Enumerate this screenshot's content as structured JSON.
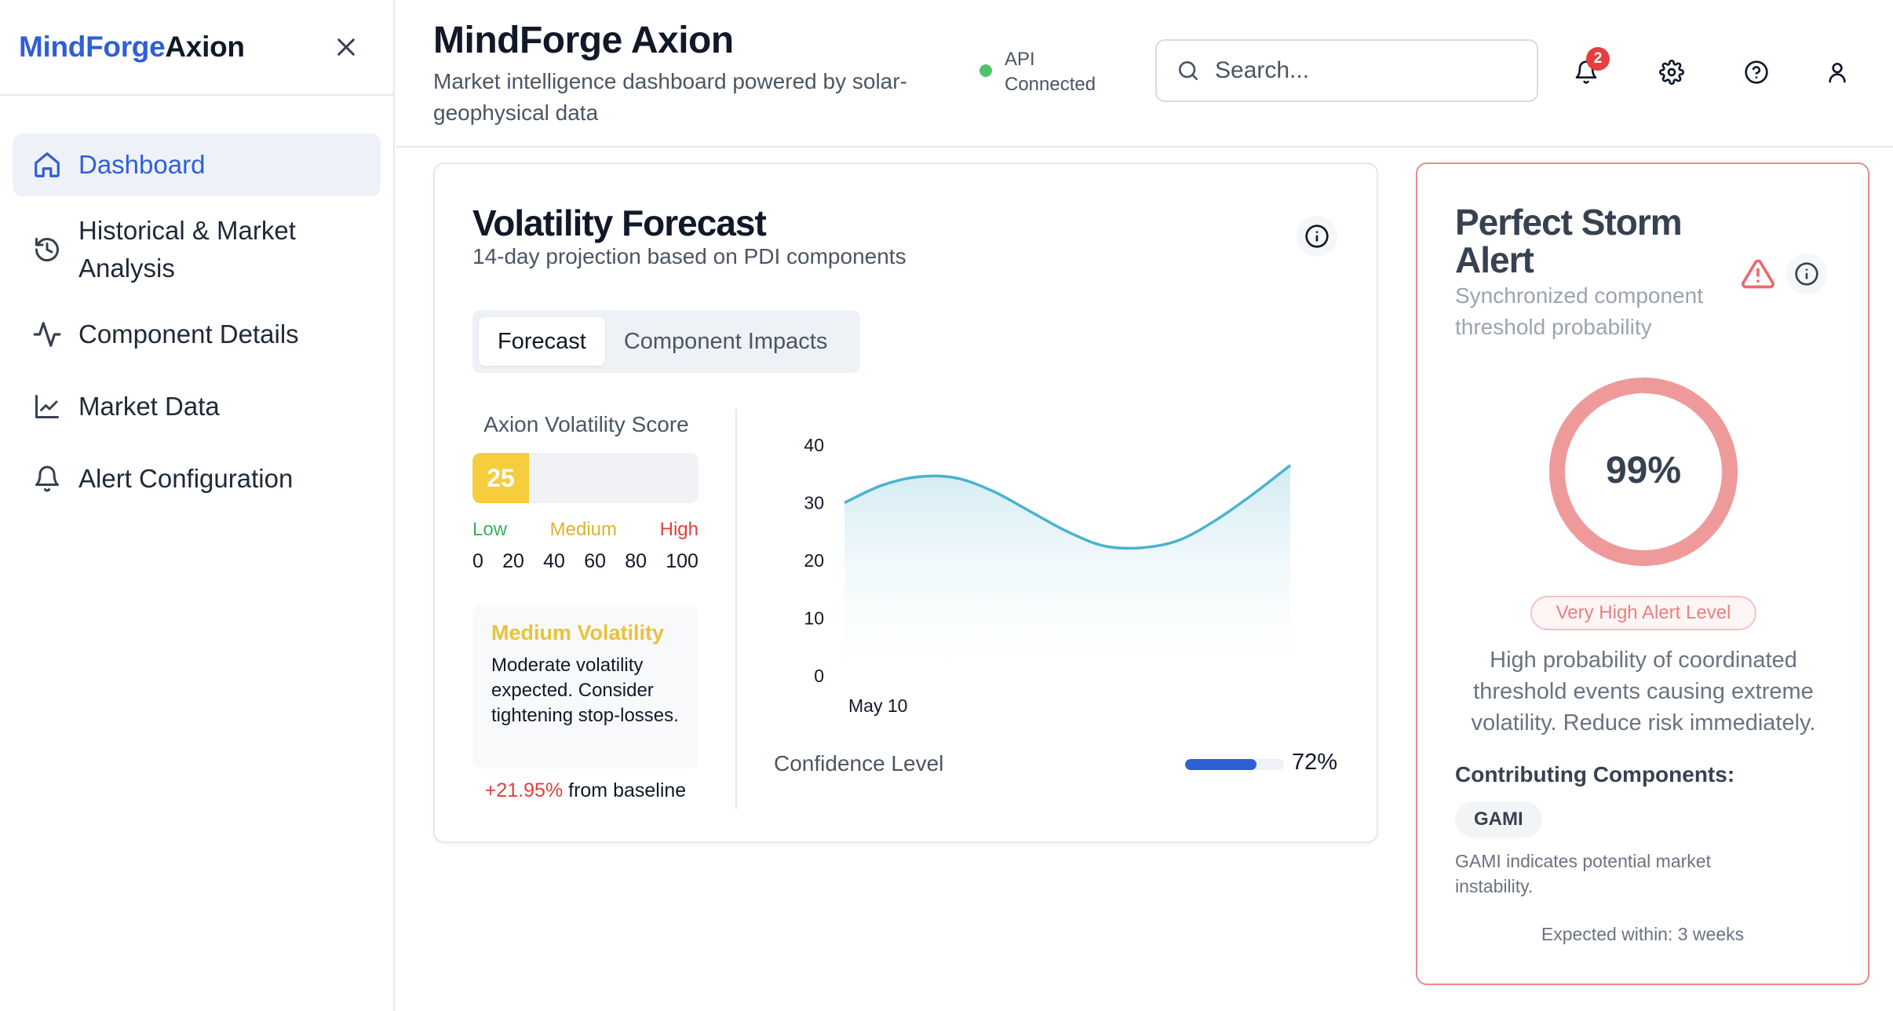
{
  "sidebar": {
    "brand_part1": "MindForge",
    "brand_part2": "Axion",
    "items": [
      {
        "label": "Dashboard",
        "icon": "home-icon",
        "active": true
      },
      {
        "label": "Historical & Market Analysis",
        "icon": "history-icon"
      },
      {
        "label": "Component Details",
        "icon": "activity-icon"
      },
      {
        "label": "Market Data",
        "icon": "line-chart-icon"
      },
      {
        "label": "Alert Configuration",
        "icon": "bell-icon"
      }
    ]
  },
  "header": {
    "title": "MindForge Axion",
    "subtitle": "Market intelligence dashboard powered by solar-geophysical data",
    "api_status": "API Connected",
    "search_placeholder": "Search...",
    "notification_count": "2"
  },
  "forecast": {
    "title": "Volatility Forecast",
    "subtitle": "14-day projection based on PDI components",
    "tabs": [
      "Forecast",
      "Component Impacts"
    ],
    "score_label": "Axion Volatility Score",
    "score_value": "25",
    "score_fraction": 0.25,
    "levels": {
      "low": "Low",
      "medium": "Medium",
      "high": "High"
    },
    "ticks": [
      "0",
      "20",
      "40",
      "60",
      "80",
      "100"
    ],
    "status_title": "Medium Volatility",
    "status_text": "Moderate volatility expected. Consider tightening stop-losses.",
    "baseline_change": "+21.95%",
    "baseline_text": " from baseline",
    "confidence_label": "Confidence Level",
    "confidence_value": "72%",
    "confidence_fraction": 0.72
  },
  "chart_data": {
    "type": "area",
    "x_tick_label": "May 10",
    "y_ticks": [
      0,
      10,
      20,
      30,
      40
    ],
    "ylim": [
      0,
      40
    ],
    "values": [
      30,
      33,
      34.5,
      34.3,
      32,
      28.5,
      25,
      22.5,
      22.2,
      23.5,
      27,
      31.5,
      36.5
    ]
  },
  "storm": {
    "title": "Perfect Storm Alert",
    "subtitle": "Synchronized component threshold probability",
    "probability": "99%",
    "probability_fraction": 0.99,
    "alert_level": "Very High Alert Level",
    "description": "High probability of coordinated threshold events causing extreme volatility. Reduce risk immediately.",
    "contrib_title": "Contributing Components:",
    "component": "GAMI",
    "component_note": "GAMI indicates potential market instability.",
    "expected": "Expected within: 3 weeks"
  },
  "colors": {
    "brand_blue": "#2f5fd7",
    "medium_yellow": "#f5cd3d",
    "alert_red": "#ea8b8b",
    "chart_line": "#4ab3d0"
  }
}
